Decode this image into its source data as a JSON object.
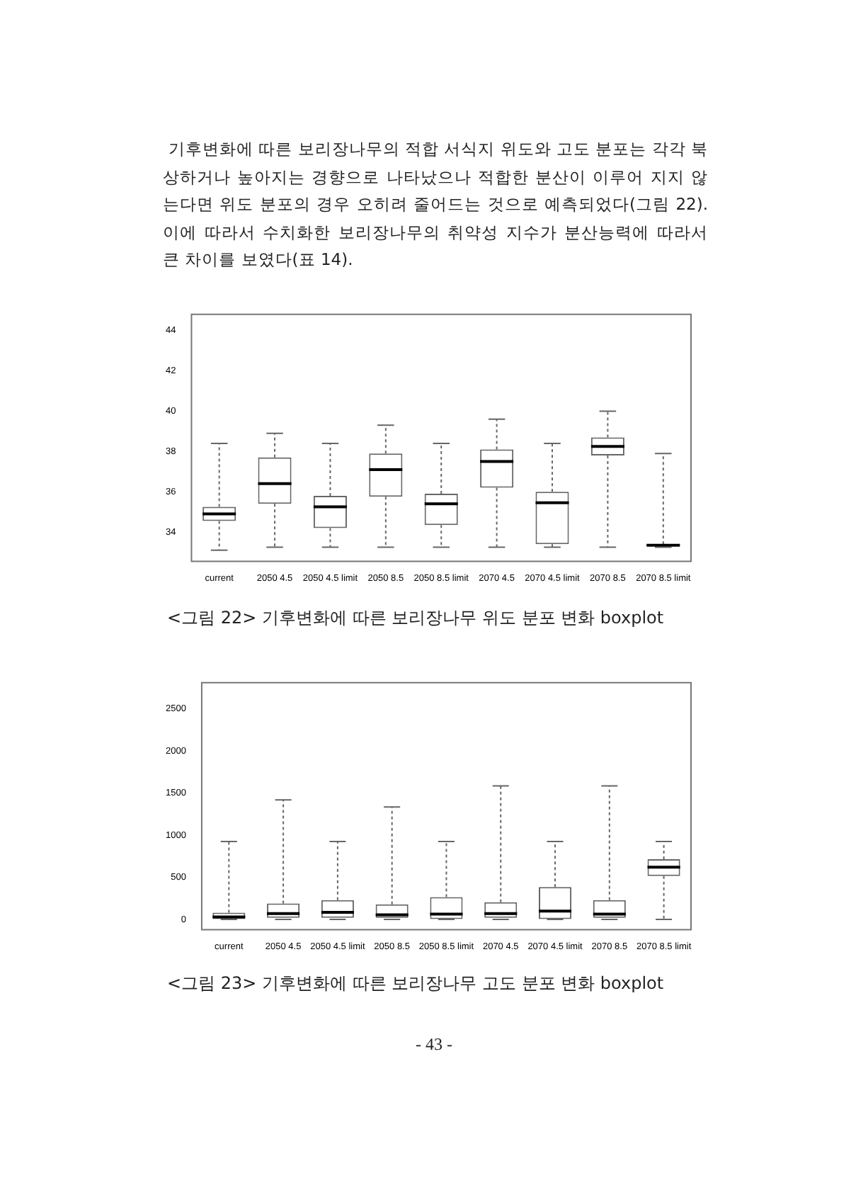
{
  "chart_data": [
    {
      "type": "box",
      "categories": [
        "current",
        "2050 4.5",
        "2050 4.5 limit",
        "2050 8.5",
        "2050 8.5 limit",
        "2070 4.5",
        "2070 4.5 limit",
        "2070 8.5",
        "2070 8.5 limit"
      ],
      "boxes": [
        {
          "low": 33.1,
          "q1": 34.55,
          "median": 34.9,
          "q3": 35.25,
          "high": 38.4
        },
        {
          "low": 33.25,
          "q1": 35.4,
          "median": 36.4,
          "q3": 37.7,
          "high": 38.9
        },
        {
          "low": 33.25,
          "q1": 34.2,
          "median": 35.25,
          "q3": 35.8,
          "high": 38.4
        },
        {
          "low": 33.25,
          "q1": 35.75,
          "median": 37.1,
          "q3": 37.9,
          "high": 39.3
        },
        {
          "low": 33.25,
          "q1": 34.35,
          "median": 35.4,
          "q3": 35.9,
          "high": 38.4
        },
        {
          "low": 33.25,
          "q1": 36.2,
          "median": 37.5,
          "q3": 38.1,
          "high": 39.6
        },
        {
          "low": 33.25,
          "q1": 33.4,
          "median": 35.45,
          "q3": 36.0,
          "high": 38.4
        },
        {
          "low": 33.25,
          "q1": 37.8,
          "median": 38.25,
          "q3": 38.7,
          "high": 40.0
        },
        {
          "low": 33.25,
          "q1": 33.3,
          "median": 33.35,
          "q3": 33.4,
          "high": 37.9
        }
      ],
      "ylim": [
        32.55,
        44.8
      ],
      "yticks": [
        34,
        36,
        38,
        40,
        42,
        44
      ],
      "grid": false,
      "annotations": [
        "기후변화에 따른 보리장나무의 적합 서식지 위도와 고도 분포는 각각 북상하거나 높아지는 경향으로 나타났으나 적합한 분산이 이루어 지지 않는다면 위도 분포의 경우 오히려 줄어드는 것으로 예측되었다(그림 22). 이에 따라서 수치화한 보리장나무의 취약성 지수가 분산능력에 따라서 큰 차이를 보였다(표 14).",
        "<그림 22> 기후변화에 따른 보리장나무 위도 분포 변화 boxplot"
      ]
    },
    {
      "type": "box",
      "categories": [
        "current",
        "2050 4.5",
        "2050 4.5 limit",
        "2050 8.5",
        "2050 8.5 limit",
        "2070 4.5",
        "2070 4.5 limit",
        "2070 8.5",
        "2070 8.5 limit"
      ],
      "boxes": [
        {
          "low": 0,
          "q1": 5,
          "median": 30,
          "q3": 80,
          "high": 925
        },
        {
          "low": 0,
          "q1": 20,
          "median": 70,
          "q3": 190,
          "high": 1420
        },
        {
          "low": 0,
          "q1": 20,
          "median": 85,
          "q3": 230,
          "high": 925
        },
        {
          "low": 0,
          "q1": 20,
          "median": 55,
          "q3": 180,
          "high": 1335
        },
        {
          "low": 0,
          "q1": 5,
          "median": 65,
          "q3": 265,
          "high": 925
        },
        {
          "low": 0,
          "q1": 20,
          "median": 70,
          "q3": 205,
          "high": 1585
        },
        {
          "low": 0,
          "q1": 5,
          "median": 100,
          "q3": 385,
          "high": 925
        },
        {
          "low": 0,
          "q1": 20,
          "median": 65,
          "q3": 230,
          "high": 1585
        },
        {
          "low": 0,
          "q1": 515,
          "median": 620,
          "q3": 715,
          "high": 925
        }
      ],
      "ylim": [
        -120,
        2810
      ],
      "yticks": [
        0,
        500,
        1000,
        1500,
        2000,
        2500
      ],
      "grid": false,
      "annotations": [
        "<그림 23> 기후변화에 따른 보리장나무 고도 분포 변화 boxplot",
        "- 43 -"
      ]
    }
  ]
}
